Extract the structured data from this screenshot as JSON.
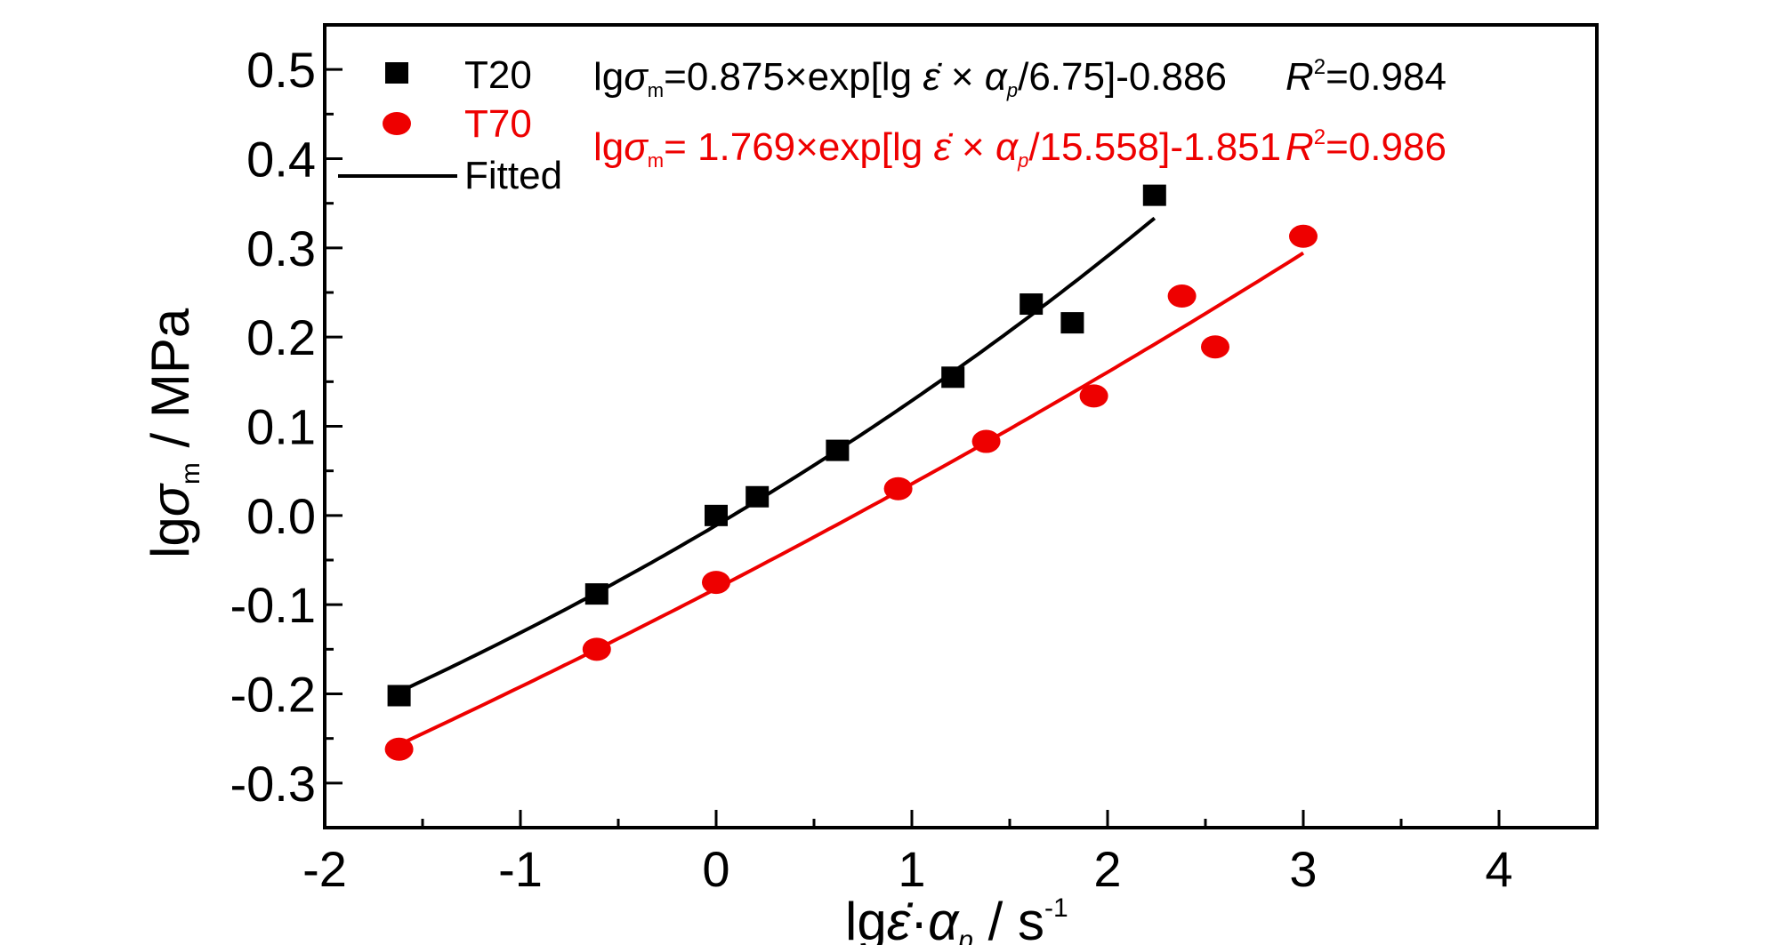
{
  "chart_data": {
    "type": "scatter",
    "xlabel_parts": [
      "lg",
      "ε̇",
      "·",
      "α",
      "p",
      " / s",
      "-1"
    ],
    "ylabel_parts": [
      "lg",
      "σ",
      "m",
      " / MPa"
    ],
    "xlim": [
      -2,
      4.5
    ],
    "ylim": [
      -0.35,
      0.55
    ],
    "x_ticks": [
      -2,
      -1,
      0,
      1,
      2,
      3,
      4
    ],
    "x_tick_labels": [
      "-2",
      "-1",
      "0",
      "1",
      "2",
      "3",
      "4"
    ],
    "y_ticks": [
      0.5,
      0.4,
      0.3,
      0.2,
      0.1,
      0.0,
      -0.1,
      -0.2,
      -0.3
    ],
    "y_tick_labels": [
      "0.5",
      "0.4",
      "0.3",
      "0.2",
      "0.1",
      "0.0",
      "-0.1",
      "-0.2",
      "-0.3"
    ],
    "grid": false,
    "legend_placement": "top-left",
    "series": [
      {
        "name": "T20",
        "marker": "square",
        "color": "#000000",
        "x": [
          -1.62,
          -0.61,
          0.0,
          0.21,
          0.62,
          1.21,
          1.61,
          1.82,
          2.24
        ],
        "y": [
          -0.202,
          -0.088,
          0.0,
          0.021,
          0.073,
          0.155,
          0.237,
          0.216,
          0.359
        ],
        "fit": {
          "a": 0.875,
          "b": 6.75,
          "c": -0.886,
          "x_range": [
            -1.62,
            2.24
          ]
        },
        "equation_parts": [
          "lg",
          "σ",
          "m",
          "=0.875×exp[lg ",
          "ε̇",
          " × ",
          "α",
          "p",
          "/6.75]-0.886"
        ],
        "r2_parts": [
          "R",
          "2",
          "=0.984"
        ]
      },
      {
        "name": "T70",
        "marker": "circle",
        "color": "#ee0000",
        "x": [
          -1.62,
          -0.61,
          0.0,
          0.93,
          1.38,
          1.93,
          2.38,
          2.55,
          3.0
        ],
        "y": [
          -0.262,
          -0.15,
          -0.075,
          0.03,
          0.083,
          0.134,
          0.246,
          0.189,
          0.313
        ],
        "fit": {
          "a": 1.769,
          "b": 15.558,
          "c": -1.851,
          "x_range": [
            -1.62,
            3.0
          ]
        },
        "equation_parts": [
          "lg",
          "σ",
          "m",
          "= 1.769×exp[lg ",
          "ε̇",
          " × ",
          "α",
          "p",
          "/15.558]-1.851"
        ],
        "r2_parts": [
          "R",
          "2",
          "=0.986"
        ]
      }
    ],
    "fit_legend_label": "Fitted"
  }
}
